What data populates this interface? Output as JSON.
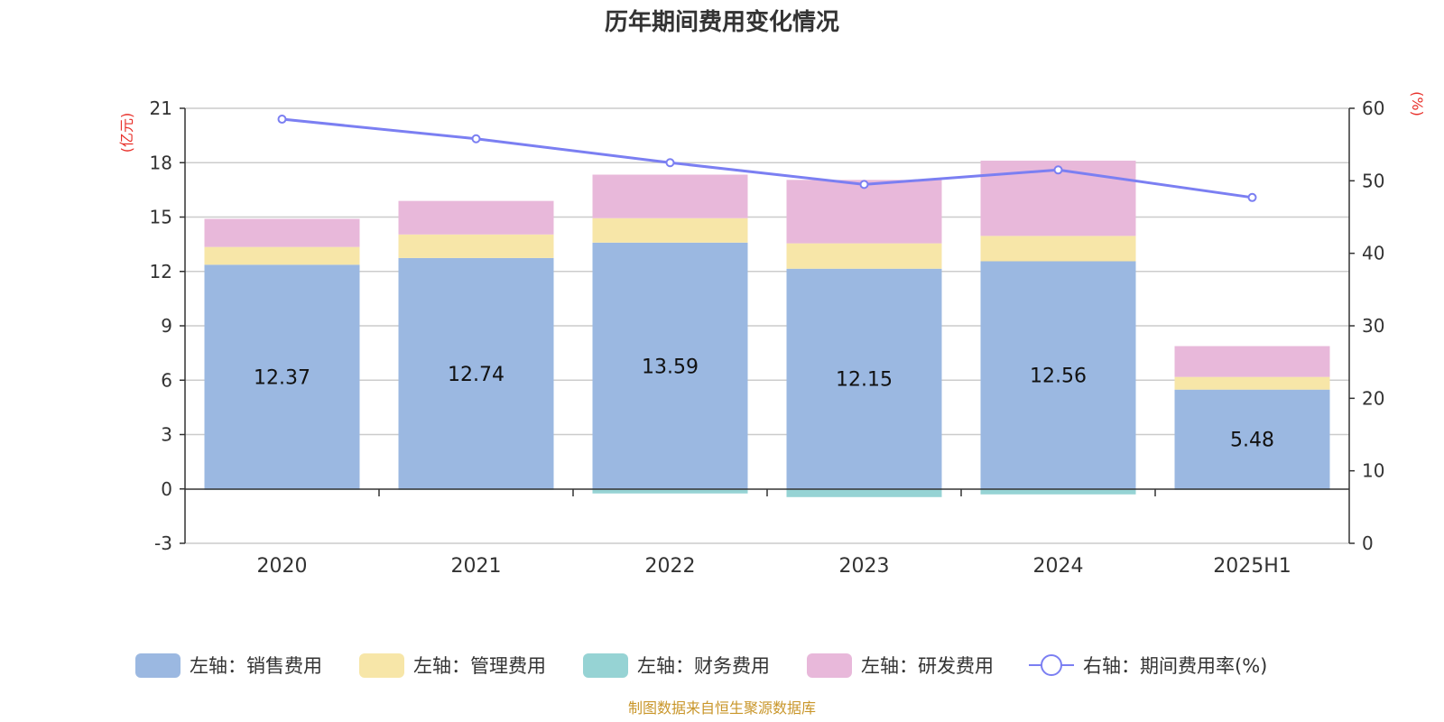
{
  "chart_data": {
    "type": "bar",
    "title": "历年期间费用变化情况",
    "categories": [
      "2020",
      "2021",
      "2022",
      "2023",
      "2024",
      "2025H1"
    ],
    "left_axis": {
      "unit": "(亿元)",
      "ylim": [
        -3,
        21
      ],
      "ticks": [
        -3,
        0,
        3,
        6,
        9,
        12,
        15,
        18,
        21
      ]
    },
    "right_axis": {
      "unit": "(%)",
      "ylim": [
        0,
        60
      ],
      "ticks": [
        0,
        10,
        20,
        30,
        40,
        50,
        60
      ]
    },
    "series": [
      {
        "name": "左轴：销售费用",
        "axis": "left",
        "type": "bar",
        "color": "#9bb8e1",
        "values": [
          12.37,
          12.74,
          13.59,
          12.15,
          12.56,
          5.48
        ],
        "labels": [
          "12.37",
          "12.74",
          "13.59",
          "12.15",
          "12.56",
          "5.48"
        ]
      },
      {
        "name": "左轴：管理费用",
        "axis": "left",
        "type": "bar",
        "color": "#f7e6a8",
        "values": [
          0.98,
          1.3,
          1.35,
          1.4,
          1.4,
          0.7
        ]
      },
      {
        "name": "左轴：财务费用",
        "axis": "left",
        "type": "bar",
        "color": "#96d3d4",
        "values": [
          -0.05,
          -0.05,
          -0.25,
          -0.45,
          -0.3,
          -0.05
        ]
      },
      {
        "name": "左轴：研发费用",
        "axis": "left",
        "type": "bar",
        "color": "#e8b8da",
        "values": [
          1.55,
          1.85,
          2.4,
          3.5,
          4.15,
          1.7
        ]
      },
      {
        "name": "右轴：期间费用率(%)",
        "axis": "right",
        "type": "line",
        "color": "#7b7ff2",
        "values": [
          58.5,
          55.8,
          52.5,
          49.5,
          51.5,
          47.7
        ]
      }
    ],
    "grid": true,
    "legend_position": "bottom"
  },
  "source_note": "制图数据来自恒生聚源数据库"
}
